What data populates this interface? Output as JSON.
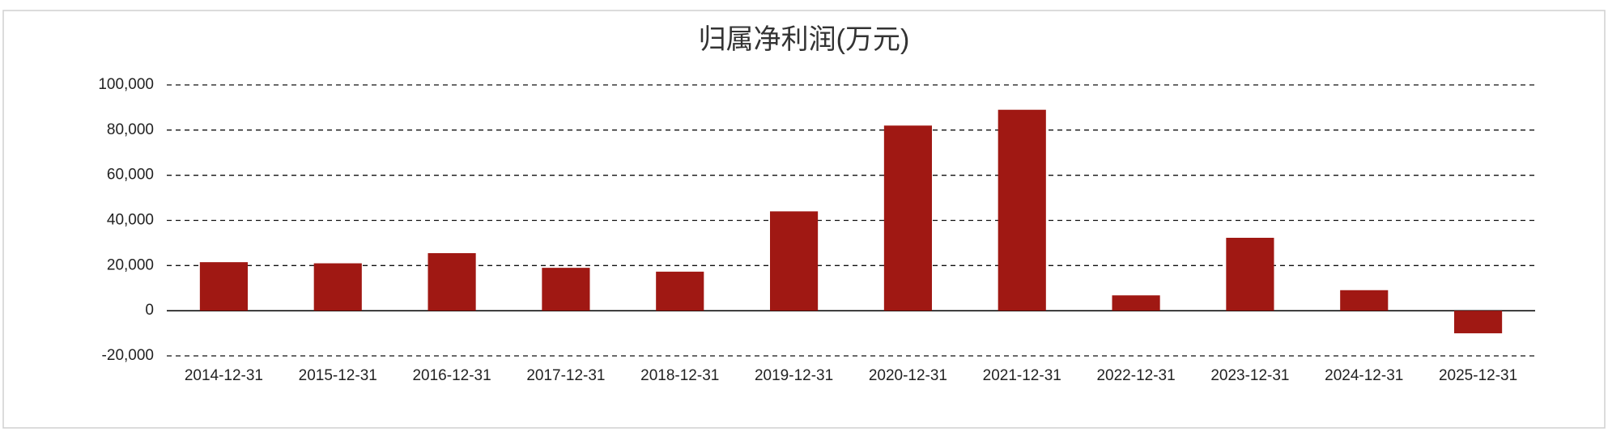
{
  "chart_data": {
    "type": "bar",
    "title": "归属净利润(万元)",
    "categories": [
      "2014-12-31",
      "2015-12-31",
      "2016-12-31",
      "2017-12-31",
      "2018-12-31",
      "2019-12-31",
      "2020-12-31",
      "2021-12-31",
      "2022-12-31",
      "2023-12-31",
      "2024-12-31",
      "2025-12-31"
    ],
    "values": [
      21500,
      21000,
      25500,
      19000,
      17300,
      44000,
      82000,
      89000,
      6800,
      32300,
      9100,
      -10000
    ],
    "color": "#a01813",
    "ylim": [
      -20000,
      100000
    ],
    "yticks": [
      {
        "value": -20000,
        "label": "-20,000"
      },
      0,
      {
        "value": 20000,
        "label": "20,000"
      },
      {
        "value": 40000,
        "label": "40,000"
      },
      {
        "value": 60000,
        "label": "60,000"
      },
      {
        "value": 80000,
        "label": "80,000"
      },
      {
        "value": 100000,
        "label": "100,000"
      }
    ],
    "grid": true
  }
}
